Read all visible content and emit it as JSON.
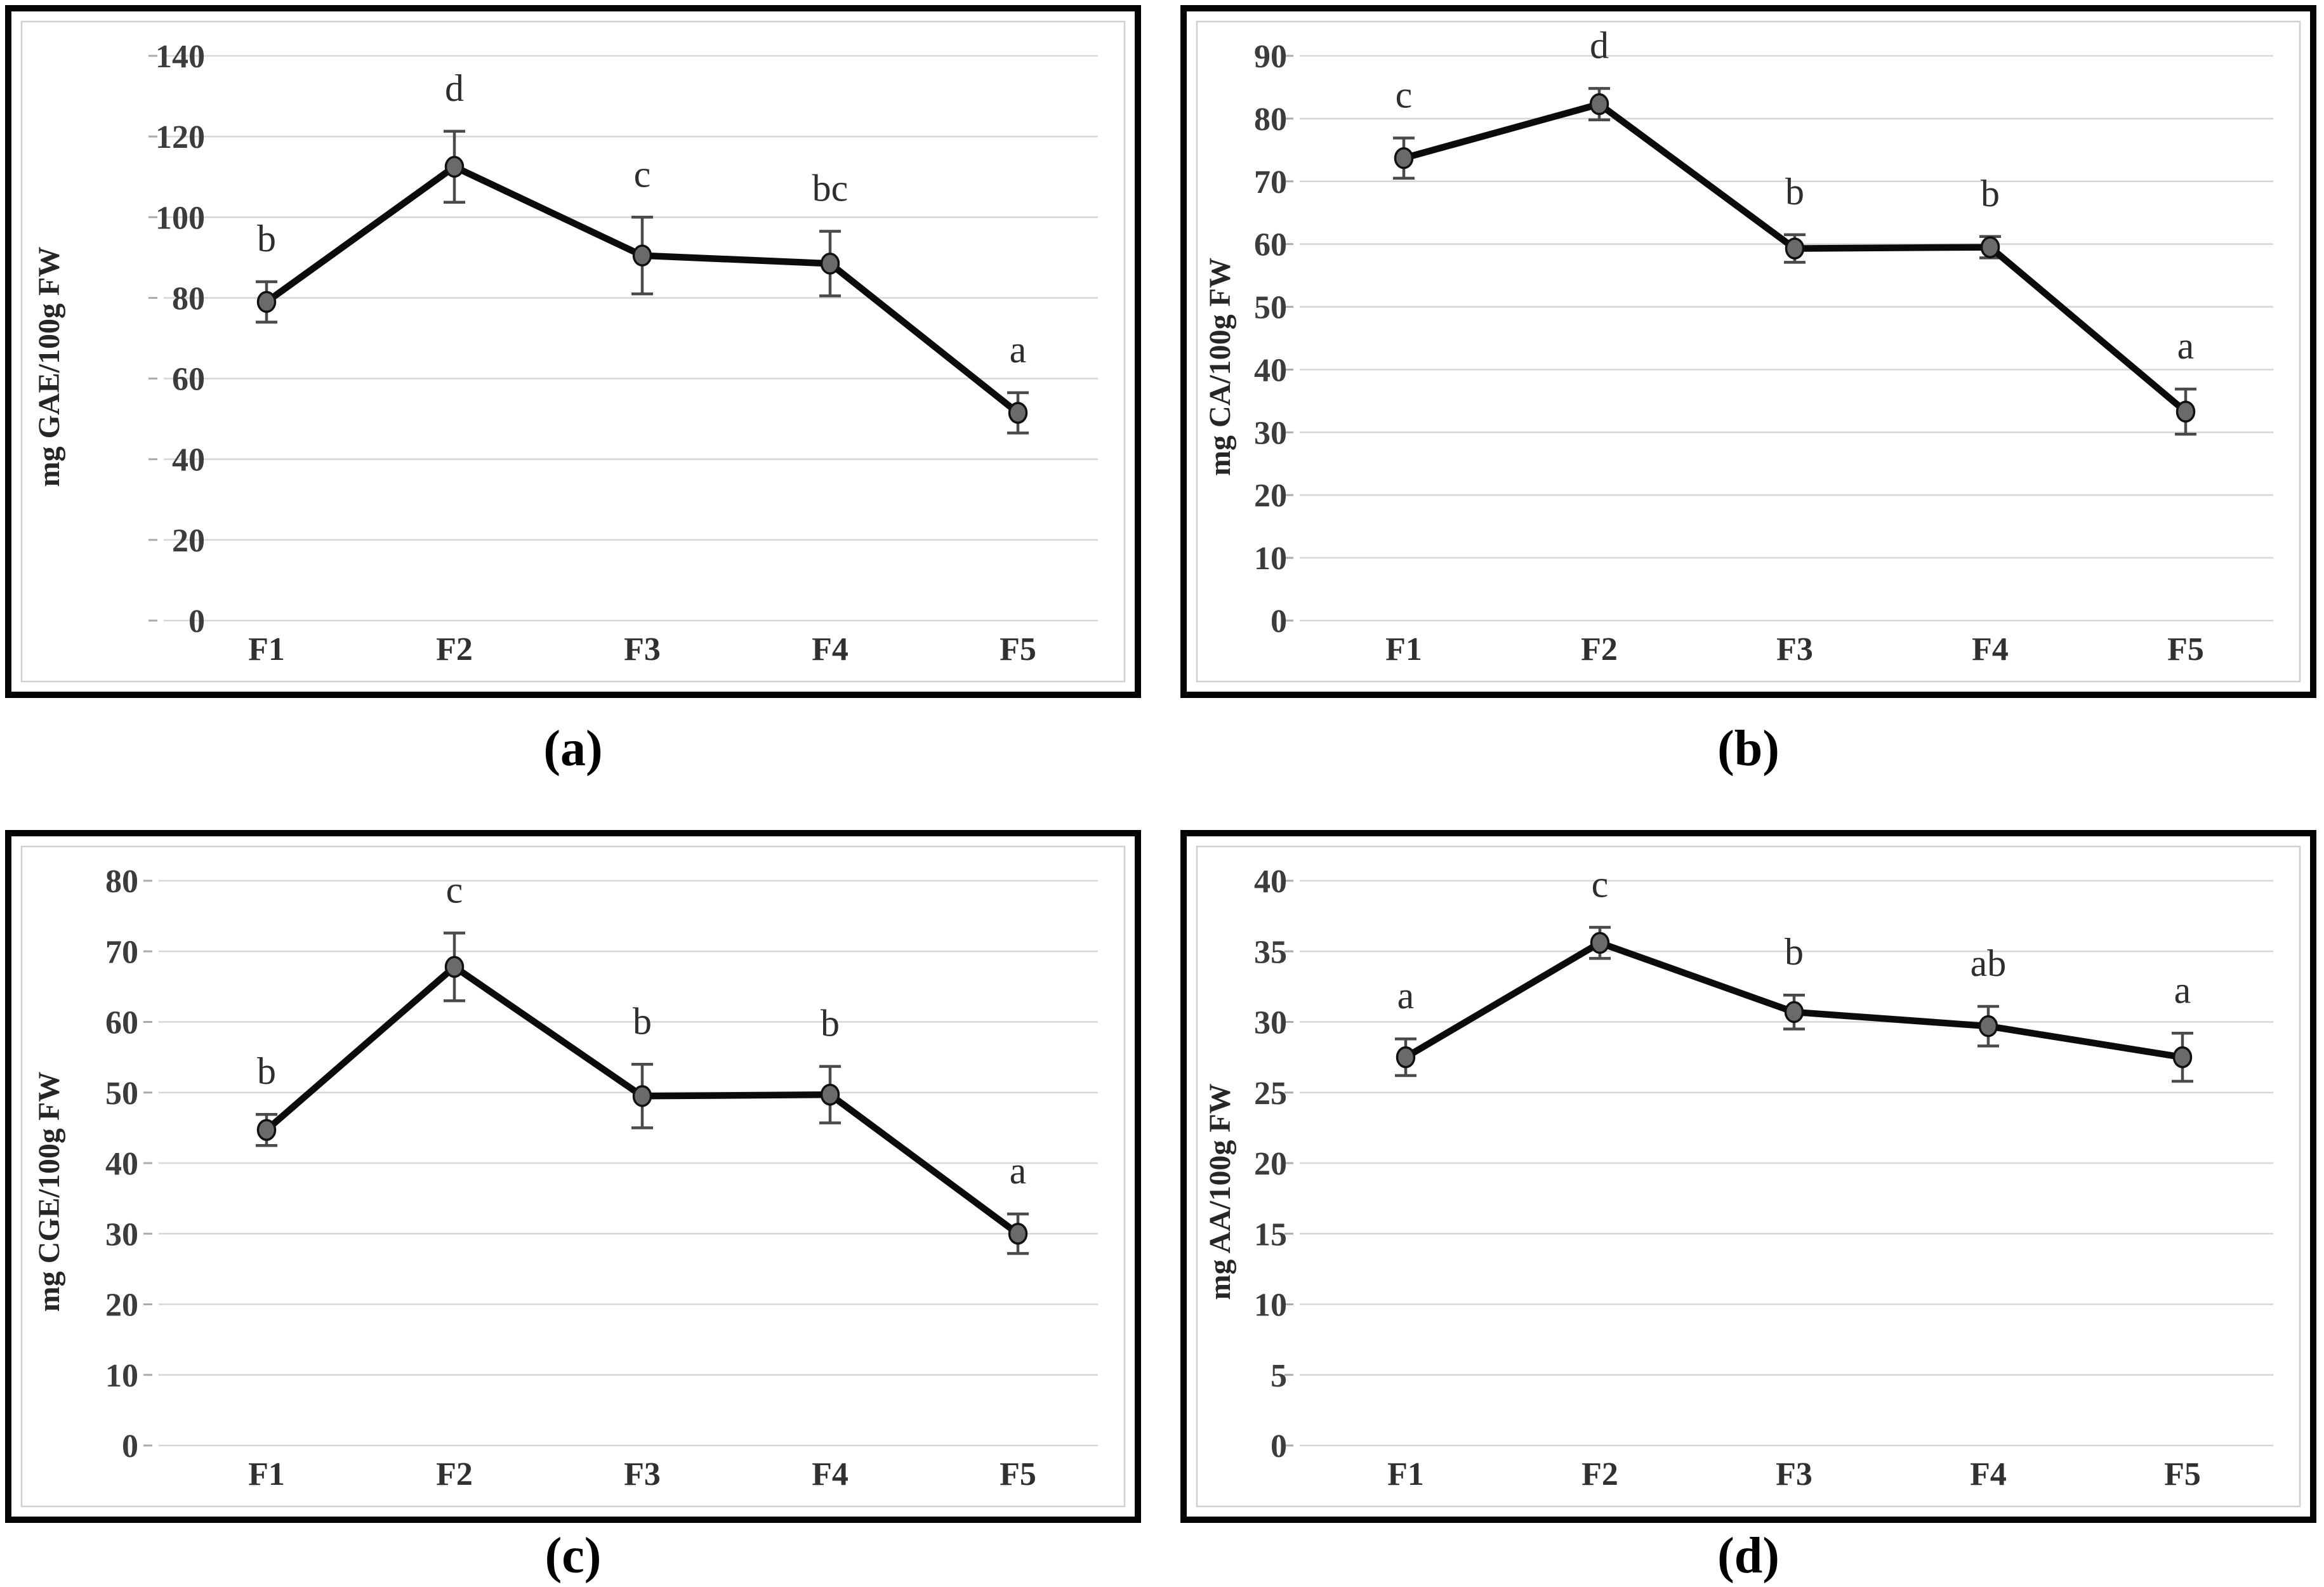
{
  "figure": {
    "description_text": "",
    "x_axis_categories": [
      "F1",
      "F2",
      "F3",
      "F4",
      "F5"
    ]
  },
  "style": {
    "background": "#ffffff",
    "panel_border_color": "#040404",
    "inner_border_color": "#d0d0d0",
    "grid_color": "#d7d7d7",
    "tick_mark_color": "#ababab",
    "tick_text_color": "#3c3c3c",
    "xlabel_text_color": "#303030",
    "ylabel_text_color": "#262626",
    "letter_color": "#2e2e2e",
    "line_color": "#0b0b0b",
    "marker_fill": "#6a6a6a",
    "marker_stroke": "#101010",
    "error_color": "#4a4a4a",
    "caption_color": "#000000"
  },
  "chart_data": [
    {
      "id": "a",
      "type": "line",
      "caption": "(a)",
      "ylabel": "mg GAE/100g FW",
      "xlabel": "",
      "categories": [
        "F1",
        "F2",
        "F3",
        "F4",
        "F5"
      ],
      "values": [
        79,
        112.5,
        90.5,
        88.5,
        51.5
      ],
      "errors": [
        5,
        8.8,
        9.5,
        8,
        5
      ],
      "sig_letters": [
        "b",
        "d",
        "c",
        "bc",
        "a"
      ],
      "ylim": [
        0,
        140
      ],
      "ytick_step": 20,
      "yticks": [
        0,
        20,
        40,
        60,
        80,
        100,
        120,
        140
      ],
      "grid": true,
      "legend": "none",
      "error_bars": true
    },
    {
      "id": "b",
      "type": "line",
      "caption": "(b)",
      "ylabel": "mg CA/100g FW",
      "xlabel": "",
      "categories": [
        "F1",
        "F2",
        "F3",
        "F4",
        "F5"
      ],
      "values": [
        73.7,
        82.3,
        59.3,
        59.5,
        33.3
      ],
      "errors": [
        3.2,
        2.5,
        2.2,
        1.7,
        3.6
      ],
      "sig_letters": [
        "c",
        "d",
        "b",
        "b",
        "a"
      ],
      "ylim": [
        0,
        90
      ],
      "ytick_step": 10,
      "yticks": [
        0,
        10,
        20,
        30,
        40,
        50,
        60,
        70,
        80,
        90
      ],
      "grid": true,
      "legend": "none",
      "error_bars": true
    },
    {
      "id": "c",
      "type": "line",
      "caption": "(c)",
      "ylabel": "mg CGE/100g FW",
      "xlabel": "",
      "categories": [
        "F1",
        "F2",
        "F3",
        "F4",
        "F5"
      ],
      "values": [
        44.7,
        67.8,
        49.5,
        49.7,
        30
      ],
      "errors": [
        2.2,
        4.8,
        4.5,
        4,
        2.8
      ],
      "sig_letters": [
        "b",
        "c",
        "b",
        "b",
        "a"
      ],
      "ylim": [
        0,
        80
      ],
      "ytick_step": 10,
      "yticks": [
        0,
        10,
        20,
        30,
        40,
        50,
        60,
        70,
        80
      ],
      "grid": true,
      "legend": "none",
      "error_bars": true
    },
    {
      "id": "d",
      "type": "line",
      "caption": "(d)",
      "ylabel": "mg AA/100g FW",
      "xlabel": "",
      "categories": [
        "F1",
        "F2",
        "F3",
        "F4",
        "F5"
      ],
      "values": [
        27.5,
        35.6,
        30.7,
        29.7,
        27.5
      ],
      "errors": [
        1.3,
        1.1,
        1.2,
        1.4,
        1.7
      ],
      "sig_letters": [
        "a",
        "c",
        "b",
        "ab",
        "a"
      ],
      "ylim": [
        0,
        40
      ],
      "ytick_step": 5,
      "yticks": [
        0,
        5,
        10,
        15,
        20,
        25,
        30,
        35,
        40
      ],
      "grid": true,
      "legend": "none",
      "error_bars": true
    }
  ]
}
